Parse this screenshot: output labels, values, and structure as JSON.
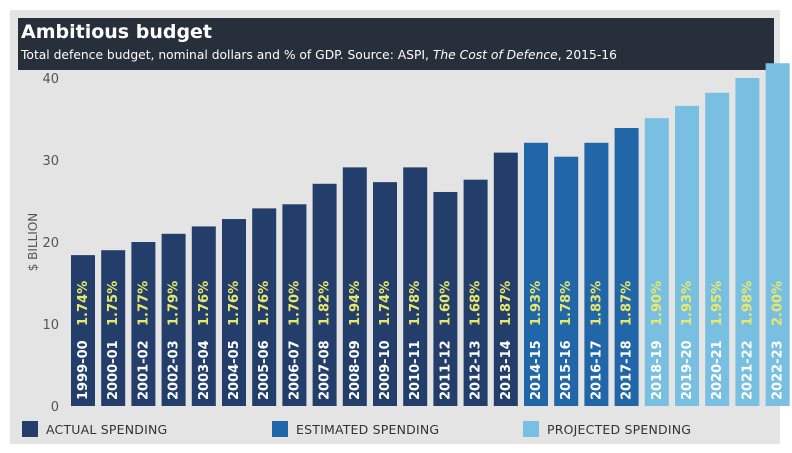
{
  "header": {
    "title": "Ambitious budget",
    "subtitle_main": "Total defence budget, nominal dollars and % of GDP. Source: ASPI, ",
    "subtitle_source": "The Cost of Defence",
    "subtitle_tail": ", 2015-16"
  },
  "chart_data": {
    "type": "bar",
    "ylabel": "$ BILLION",
    "ylim": [
      0,
      42
    ],
    "yticks": [
      0,
      10,
      20,
      30,
      40
    ],
    "grid": false,
    "legend_position": "bottom",
    "categories": [
      "1999-00",
      "2000-01",
      "2001-02",
      "2002-03",
      "2003-04",
      "2004-05",
      "2005-06",
      "2006-07",
      "2007-08",
      "2008-09",
      "2009-10",
      "2010-11",
      "2011-12",
      "2012-13",
      "2013-14",
      "2014-15",
      "2015-16",
      "2016-17",
      "2017-18",
      "2018-19",
      "2019-20",
      "2020-21",
      "2021-22",
      "2022-23"
    ],
    "values": [
      18.4,
      19.0,
      20.0,
      21.0,
      21.9,
      22.8,
      24.1,
      24.6,
      27.1,
      29.1,
      27.3,
      29.1,
      26.1,
      27.6,
      30.9,
      32.1,
      30.4,
      32.1,
      33.9,
      35.1,
      36.6,
      38.2,
      40.0,
      41.8
    ],
    "gdp_labels": [
      "1.74%",
      "1.75%",
      "1.77%",
      "1.79%",
      "1.76%",
      "1.76%",
      "1.76%",
      "1.70%",
      "1.82%",
      "1.94%",
      "1.74%",
      "1.78%",
      "1.60%",
      "1.68%",
      "1.87%",
      "1.93%",
      "1.78%",
      "1.83%",
      "1.87%",
      "1.90%",
      "1.93%",
      "1.95%",
      "1.98%",
      "2.00%"
    ],
    "spending_type": [
      "actual",
      "actual",
      "actual",
      "actual",
      "actual",
      "actual",
      "actual",
      "actual",
      "actual",
      "actual",
      "actual",
      "actual",
      "actual",
      "actual",
      "actual",
      "estimated",
      "estimated",
      "estimated",
      "estimated",
      "projected",
      "projected",
      "projected",
      "projected",
      "projected"
    ],
    "series_colors": {
      "actual": "#243e6b",
      "estimated": "#2066a8",
      "projected": "#79bfe2"
    },
    "legend": [
      {
        "key": "actual",
        "label": "ACTUAL SPENDING"
      },
      {
        "key": "estimated",
        "label": "ESTIMATED SPENDING"
      },
      {
        "key": "projected",
        "label": "PROJECTED SPENDING"
      }
    ]
  },
  "colors": {
    "header_bg": "#262f3a",
    "panel_bg": "#e4e4e4",
    "gdp_label": "#e8e86a",
    "year_label": "#ffffff"
  }
}
